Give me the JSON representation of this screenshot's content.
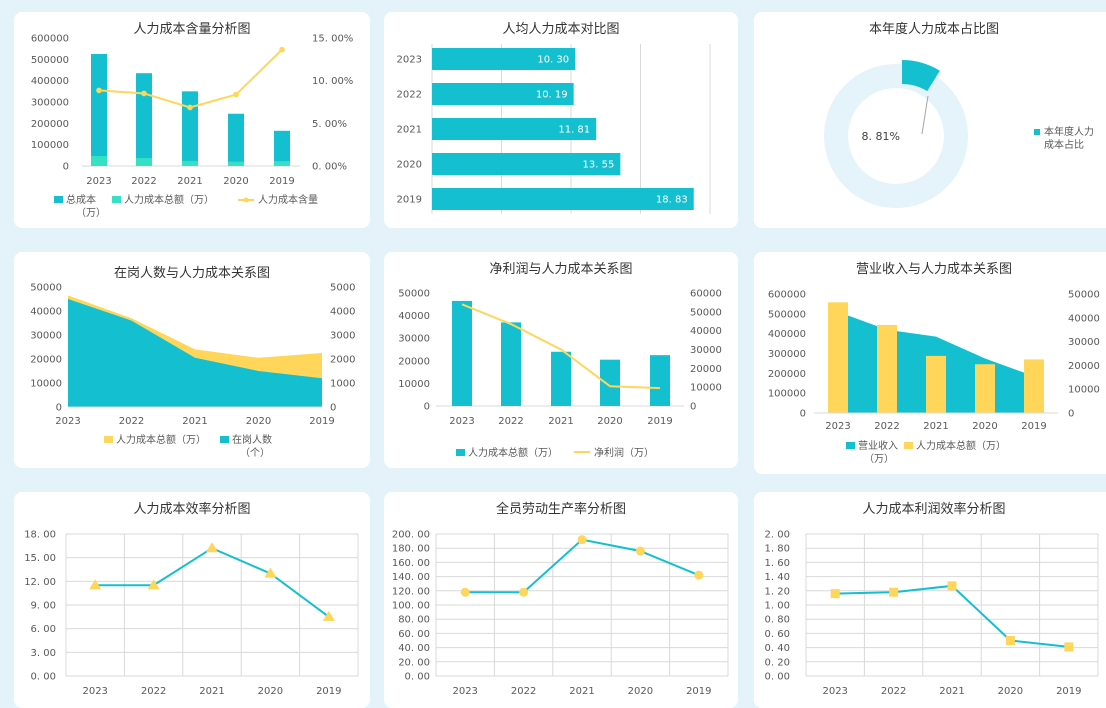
{
  "charts": {
    "c1": {
      "type": "bar+line",
      "title": "人力成本含量分析图",
      "categories": [
        "2023",
        "2022",
        "2021",
        "2020",
        "2019"
      ],
      "series": [
        {
          "name": "总成本（万）",
          "values": [
            525000,
            435000,
            350000,
            245000,
            165000
          ]
        },
        {
          "name": "人力成本总额（万）",
          "values": [
            46500,
            37000,
            24000,
            20500,
            22500
          ]
        },
        {
          "name": "人力成本含量",
          "values": [
            8.86,
            8.5,
            6.86,
            8.37,
            13.64
          ]
        }
      ],
      "y1_ticks": [
        "600000",
        "500000",
        "400000",
        "300000",
        "200000",
        "100000",
        "0"
      ],
      "y2_ticks": [
        "15. 00%",
        "10. 00%",
        "5. 00%",
        "0. 00%"
      ],
      "legend": [
        "总成本",
        "（万）",
        "人力成本总额（万）",
        "人力成本含量"
      ]
    },
    "c2": {
      "type": "bar-horizontal",
      "title": "人均人力成本对比图",
      "categories": [
        "2023",
        "2022",
        "2021",
        "2020",
        "2019"
      ],
      "values": [
        10.3,
        10.19,
        11.81,
        13.55,
        18.83
      ],
      "value_labels": [
        "10. 30",
        "10. 19",
        "11. 81",
        "13. 55",
        "18. 83"
      ]
    },
    "c3": {
      "type": "pie",
      "title": "本年度人力成本占比图",
      "values": [
        8.81,
        91.19
      ],
      "label": "8. 81%",
      "legend": [
        "本年度人力",
        "成本占比"
      ]
    },
    "c4": {
      "type": "area",
      "title": "在岗人数与人力成本关系图",
      "categories": [
        "2023",
        "2022",
        "2021",
        "2020",
        "2019"
      ],
      "series": [
        {
          "name": "人力成本总额（万）",
          "values": [
            46500,
            37000,
            24000,
            20500,
            22500
          ]
        },
        {
          "name": "在岗人数（个）",
          "values": [
            4500,
            3600,
            2050,
            1500,
            1200
          ]
        }
      ],
      "y1_ticks": [
        "50000",
        "40000",
        "30000",
        "20000",
        "10000",
        "0"
      ],
      "y2_ticks": [
        "5000",
        "4000",
        "3000",
        "2000",
        "1000",
        "0"
      ],
      "legend": [
        "人力成本总额（万）",
        "在岗人数",
        "（个）"
      ]
    },
    "c5": {
      "type": "bar+line",
      "title": "净利润与人力成本关系图",
      "categories": [
        "2023",
        "2022",
        "2021",
        "2020",
        "2019"
      ],
      "series": [
        {
          "name": "人力成本总额（万）",
          "values": [
            46500,
            37000,
            24000,
            20500,
            22500
          ]
        },
        {
          "name": "净利润（万）",
          "values": [
            54000,
            43500,
            30000,
            10500,
            9500
          ]
        }
      ],
      "y1_ticks": [
        "50000",
        "40000",
        "30000",
        "20000",
        "10000",
        "0"
      ],
      "y2_ticks": [
        "60000",
        "50000",
        "40000",
        "30000",
        "20000",
        "10000",
        "0"
      ],
      "legend": [
        "人力成本总额（万）",
        "净利润（万）"
      ]
    },
    "c6": {
      "type": "area+bar",
      "title": "营业收入与人力成本关系图",
      "categories": [
        "2023",
        "2022",
        "2021",
        "2020",
        "2019"
      ],
      "series": [
        {
          "name": "营业收入（万）",
          "values": [
            510000,
            420000,
            385000,
            275000,
            185000
          ]
        },
        {
          "name": "人力成本总额（万）",
          "values": [
            46500,
            37000,
            24000,
            20500,
            22500
          ]
        }
      ],
      "y1_ticks": [
        "600000",
        "500000",
        "400000",
        "300000",
        "200000",
        "100000",
        "0"
      ],
      "y2_ticks": [
        "50000",
        "40000",
        "30000",
        "20000",
        "10000",
        "0"
      ],
      "legend": [
        "营业收入",
        "（万）",
        "人力成本总额（万）"
      ]
    },
    "c7": {
      "type": "line",
      "title": "人力成本效率分析图",
      "categories": [
        "2023",
        "2022",
        "2021",
        "2020",
        "2019"
      ],
      "values": [
        11.5,
        11.5,
        16.2,
        13.0,
        7.5
      ],
      "y_ticks": [
        "18. 00",
        "15. 00",
        "12. 00",
        "9. 00",
        "6. 00",
        "3. 00",
        "0. 00"
      ]
    },
    "c8": {
      "type": "line",
      "title": "全员劳动生产率分析图",
      "categories": [
        "2023",
        "2022",
        "2021",
        "2020",
        "2019"
      ],
      "values": [
        118,
        118,
        192,
        176,
        142
      ],
      "y_ticks": [
        "200. 00",
        "180. 00",
        "160. 00",
        "140. 00",
        "120. 00",
        "100. 00",
        "80. 00",
        "60. 00",
        "40. 00",
        "20. 00",
        "0. 00"
      ]
    },
    "c9": {
      "type": "line",
      "title": "人力成本利润效率分析图",
      "categories": [
        "2023",
        "2022",
        "2021",
        "2020",
        "2019"
      ],
      "values": [
        1.16,
        1.18,
        1.27,
        0.5,
        0.41
      ],
      "y_ticks": [
        "2. 00",
        "1. 80",
        "1. 60",
        "1. 40",
        "1. 20",
        "1. 00",
        "0. 80",
        "0. 60",
        "0. 40",
        "0. 20",
        "0. 00"
      ]
    }
  },
  "colors": {
    "teal": "#14bfcf",
    "mint": "#36e0c4",
    "yellow": "#ffd65a",
    "ring": "#e5f3fa",
    "grid": "#d9d9d9"
  }
}
